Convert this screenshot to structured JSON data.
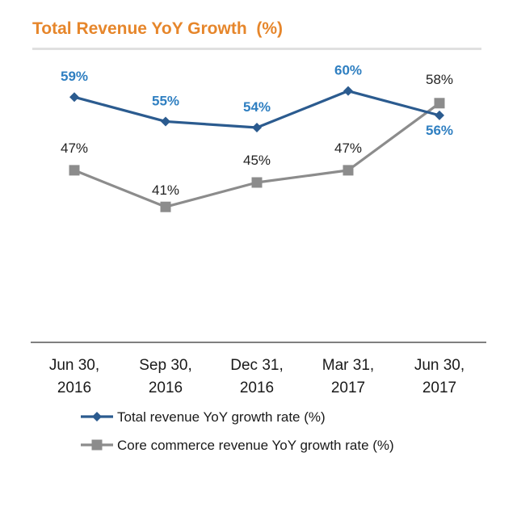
{
  "chart_data": {
    "type": "line",
    "title": "Total Revenue YoY Growth  (%)",
    "categories": [
      "Jun 30, 2016",
      "Sep 30, 2016",
      "Dec 31, 2016",
      "Mar 31, 2017",
      "Jun 30, 2017"
    ],
    "category_lines": [
      [
        "Jun 30,",
        "2016"
      ],
      [
        "Sep 30,",
        "2016"
      ],
      [
        "Dec 31,",
        "2016"
      ],
      [
        "Mar 31,",
        "2017"
      ],
      [
        "Jun 30,",
        "2017"
      ]
    ],
    "series": [
      {
        "name": "Total revenue YoY growth rate (%)",
        "values": [
          59,
          55,
          54,
          60,
          56
        ],
        "labels": [
          "59%",
          "55%",
          "54%",
          "60%",
          "56%"
        ],
        "color": "#2b5b8f",
        "label_color": "#2f7fc1",
        "marker": "diamond"
      },
      {
        "name": "Core commerce revenue YoY growth rate (%)",
        "values": [
          47,
          41,
          45,
          47,
          58
        ],
        "labels": [
          "47%",
          "41%",
          "45%",
          "47%",
          "58%"
        ],
        "color": "#8c8c8c",
        "label_color": "#222222",
        "marker": "square"
      }
    ],
    "ylim": [
      18,
      63
    ],
    "grid": false,
    "legend_position": "bottom"
  }
}
